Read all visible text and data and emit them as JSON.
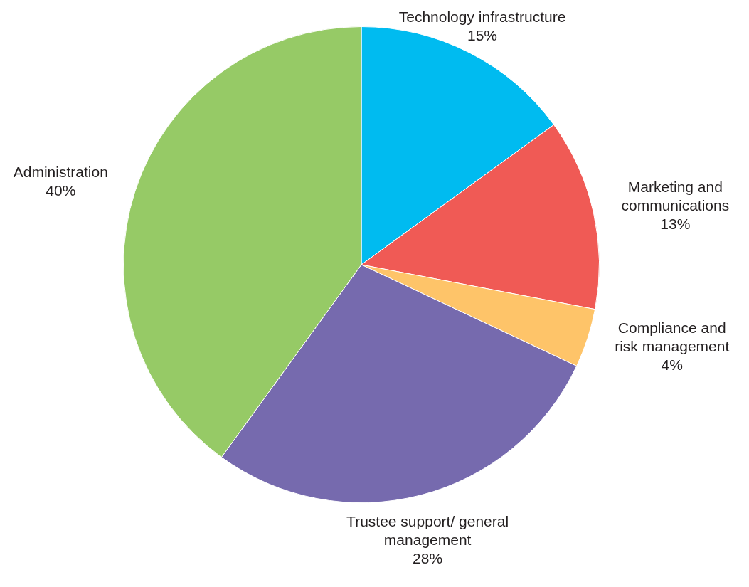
{
  "chart_data": {
    "type": "pie",
    "categories": [
      "Technology infrastructure",
      "Marketing and communications",
      "Compliance and risk management",
      "Trustee support/ general management",
      "Administration"
    ],
    "values": [
      15,
      13,
      4,
      28,
      40
    ],
    "value_labels": [
      "15%",
      "13%",
      "4%",
      "28%",
      "40%"
    ],
    "colors": [
      "#00bbf0",
      "#f05a55",
      "#fec469",
      "#766aae",
      "#96ca66"
    ],
    "legend": false
  }
}
